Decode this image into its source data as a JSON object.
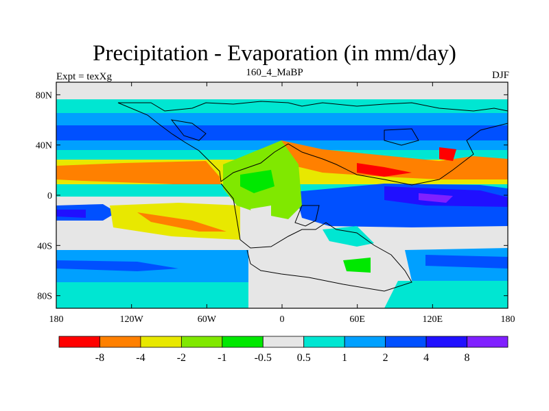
{
  "title": "Precipitation - Evaporation (in mm/day)",
  "subtitle": "160_4_MaBP",
  "left_label": "Expt = texXg",
  "right_label": "DJF",
  "axes": {
    "x_ticks": [
      {
        "value": -180,
        "label": "180"
      },
      {
        "value": -120,
        "label": "120W"
      },
      {
        "value": -60,
        "label": "60W"
      },
      {
        "value": 0,
        "label": "0"
      },
      {
        "value": 60,
        "label": "60E"
      },
      {
        "value": 120,
        "label": "120E"
      },
      {
        "value": 180,
        "label": "180"
      }
    ],
    "y_ticks": [
      {
        "value": 80,
        "label": "80N"
      },
      {
        "value": 40,
        "label": "40N"
      },
      {
        "value": 0,
        "label": "0"
      },
      {
        "value": -40,
        "label": "40S"
      },
      {
        "value": -80,
        "label": "80S"
      }
    ],
    "lon_range": [
      -180,
      180
    ],
    "lat_range": [
      -90,
      90
    ]
  },
  "colorbar": {
    "colors": [
      "#ff0000",
      "#ff8000",
      "#e8e800",
      "#80e800",
      "#00e800",
      "#e6e6e6",
      "#00e6d2",
      "#00a0ff",
      "#0050ff",
      "#2010ff",
      "#8020ff"
    ],
    "labels": [
      "-8",
      "-4",
      "-2",
      "-1",
      "-0.5",
      "0.5",
      "1",
      "2",
      "4",
      "8"
    ]
  },
  "colors": {
    "ocean_fill": "#e6e6e6",
    "coast_line": "#000000"
  }
}
